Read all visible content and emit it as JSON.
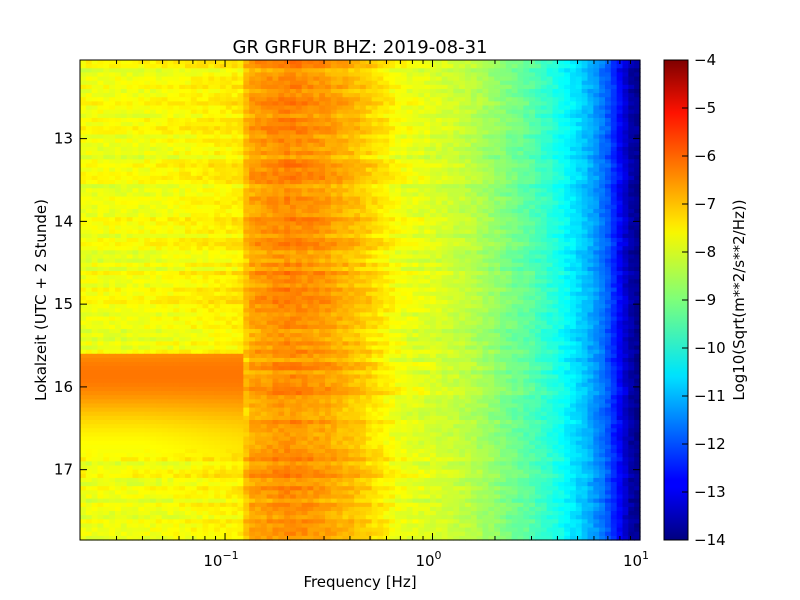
{
  "chart_data": {
    "type": "heatmap",
    "title": "GR GRFUR BHZ: 2019-08-31",
    "xlabel": "Frequency [Hz]",
    "ylabel": "Lokalzeit (UTC + 2 Stunde)",
    "colorbar_label": "Log10(Sqrt(m**2/s**2/Hz))",
    "x_scale": "log",
    "xlim": [
      0.02,
      10
    ],
    "ylim": [
      17.85,
      12.05
    ],
    "y_inverted": true,
    "clim": [
      -14,
      -4
    ],
    "colormap": "jet",
    "grid": false,
    "x_ticks": [
      {
        "value": 0.1,
        "base": "10",
        "exp": "−1"
      },
      {
        "value": 1,
        "base": "10",
        "exp": "0"
      },
      {
        "value": 10,
        "base": "10",
        "exp": "1"
      }
    ],
    "y_ticks": [
      {
        "value": 13,
        "label": "13"
      },
      {
        "value": 14,
        "label": "14"
      },
      {
        "value": 15,
        "label": "15"
      },
      {
        "value": 16,
        "label": "16"
      },
      {
        "value": 17,
        "label": "17"
      }
    ],
    "colorbar_ticks": [
      {
        "value": -4,
        "label": "−4"
      },
      {
        "value": -5,
        "label": "−5"
      },
      {
        "value": -6,
        "label": "−6"
      },
      {
        "value": -7,
        "label": "−7"
      },
      {
        "value": -8,
        "label": "−8"
      },
      {
        "value": -9,
        "label": "−9"
      },
      {
        "value": -10,
        "label": "−10"
      },
      {
        "value": -11,
        "label": "−11"
      },
      {
        "value": -12,
        "label": "−12"
      },
      {
        "value": -13,
        "label": "−13"
      },
      {
        "value": -14,
        "label": "−14"
      }
    ],
    "spectrum_profile": {
      "frequency_hz": [
        0.02,
        0.04,
        0.06,
        0.12,
        0.13,
        0.2,
        0.3,
        0.45,
        0.55,
        0.7,
        1.0,
        1.5,
        2.0,
        3.0,
        4.0,
        5.0,
        6.0,
        7.0,
        8.0,
        9.0,
        10.0
      ],
      "log10_psd": [
        -7.9,
        -7.9,
        -7.8,
        -7.6,
        -6.9,
        -6.6,
        -6.8,
        -7.2,
        -7.5,
        -7.9,
        -8.1,
        -8.4,
        -8.8,
        -9.4,
        -10.0,
        -10.6,
        -11.2,
        -11.9,
        -12.8,
        -13.6,
        -13.9
      ]
    },
    "event": {
      "time_start": 15.6,
      "time_end": 16.9,
      "frequency_range_hz": [
        0.02,
        0.12
      ],
      "peak_log10_psd": -6.4
    }
  }
}
